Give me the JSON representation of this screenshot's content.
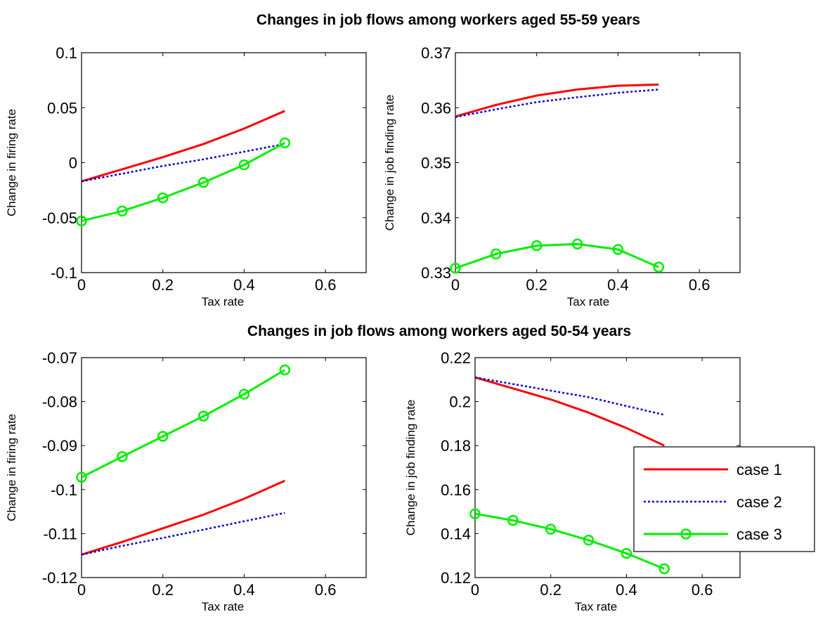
{
  "figure": {
    "suptitles": [
      "Changes in job flows among workers aged 55-59 years",
      "Changes in job flows among workers aged 50-54 years"
    ],
    "colors": {
      "case1": "#ff0000",
      "case2": "#0000cc",
      "case3": "#00ee00"
    }
  },
  "chart_data": [
    {
      "type": "line",
      "xlabel": "Tax rate",
      "ylabel": "Change in firing rate",
      "xlim": [
        0,
        0.7
      ],
      "ylim": [
        -0.1,
        0.1
      ],
      "xticks": [
        "0",
        "0.2",
        "0.4",
        "0.6"
      ],
      "yticks": [
        "-0.1",
        "-0.05",
        "0",
        "0.05",
        "0.1"
      ],
      "x": [
        0,
        0.1,
        0.2,
        0.3,
        0.4,
        0.5
      ],
      "series": [
        {
          "name": "case 1",
          "values": [
            -0.017,
            -0.006,
            0.005,
            0.017,
            0.031,
            0.047
          ]
        },
        {
          "name": "case 2",
          "values": [
            -0.017,
            -0.01,
            -0.003,
            0.003,
            0.01,
            0.017
          ]
        },
        {
          "name": "case 3",
          "values": [
            -0.053,
            -0.044,
            -0.032,
            -0.018,
            -0.002,
            0.018
          ]
        }
      ]
    },
    {
      "type": "line",
      "xlabel": "Tax rate",
      "ylabel": "Change in job finding rate",
      "xlim": [
        0,
        0.7
      ],
      "ylim": [
        0.33,
        0.37
      ],
      "xticks": [
        "0",
        "0.2",
        "0.4",
        "0.6"
      ],
      "yticks": [
        "0.33",
        "0.34",
        "0.35",
        "0.36",
        "0.37"
      ],
      "x": [
        0,
        0.1,
        0.2,
        0.3,
        0.4,
        0.5
      ],
      "series": [
        {
          "name": "case 1",
          "values": [
            0.3584,
            0.3605,
            0.3622,
            0.3633,
            0.364,
            0.3642
          ]
        },
        {
          "name": "case 2",
          "values": [
            0.3583,
            0.3597,
            0.361,
            0.3619,
            0.3627,
            0.3633
          ]
        },
        {
          "name": "case 3",
          "values": [
            0.3308,
            0.3334,
            0.3349,
            0.3352,
            0.3342,
            0.331
          ]
        }
      ]
    },
    {
      "type": "line",
      "xlabel": "Tax rate",
      "ylabel": "Change in firing rate",
      "xlim": [
        0,
        0.7
      ],
      "ylim": [
        -0.12,
        -0.07
      ],
      "xticks": [
        "0",
        "0.2",
        "0.4",
        "0.6"
      ],
      "yticks": [
        "-0.12",
        "-0.11",
        "-0.1",
        "-0.09",
        "-0.08",
        "-0.07"
      ],
      "x": [
        0,
        0.1,
        0.2,
        0.3,
        0.4,
        0.5
      ],
      "series": [
        {
          "name": "case 1",
          "values": [
            -0.1148,
            -0.1119,
            -0.1088,
            -0.1057,
            -0.1021,
            -0.098
          ]
        },
        {
          "name": "case 2",
          "values": [
            -0.1148,
            -0.1128,
            -0.111,
            -0.1091,
            -0.1072,
            -0.1053
          ]
        },
        {
          "name": "case 3",
          "values": [
            -0.0972,
            -0.0925,
            -0.0879,
            -0.0833,
            -0.0783,
            -0.0728
          ]
        }
      ]
    },
    {
      "type": "line",
      "xlabel": "Tax rate",
      "ylabel": "Change in job finding rate",
      "xlim": [
        0,
        0.7
      ],
      "ylim": [
        0.12,
        0.22
      ],
      "xticks": [
        "0",
        "0.2",
        "0.4",
        "0.6"
      ],
      "yticks": [
        "0.12",
        "0.14",
        "0.16",
        "0.18",
        "0.2",
        "0.22"
      ],
      "x": [
        0,
        0.1,
        0.2,
        0.3,
        0.4,
        0.5
      ],
      "series": [
        {
          "name": "case 1",
          "values": [
            0.211,
            0.206,
            0.201,
            0.195,
            0.188,
            0.18
          ]
        },
        {
          "name": "case 2",
          "values": [
            0.211,
            0.208,
            0.205,
            0.202,
            0.198,
            0.194
          ]
        },
        {
          "name": "case 3",
          "values": [
            0.149,
            0.146,
            0.142,
            0.137,
            0.131,
            0.124
          ]
        }
      ],
      "legend": {
        "position": "bottom-right",
        "entries": [
          "case 1",
          "case 2",
          "case 3"
        ]
      }
    }
  ]
}
